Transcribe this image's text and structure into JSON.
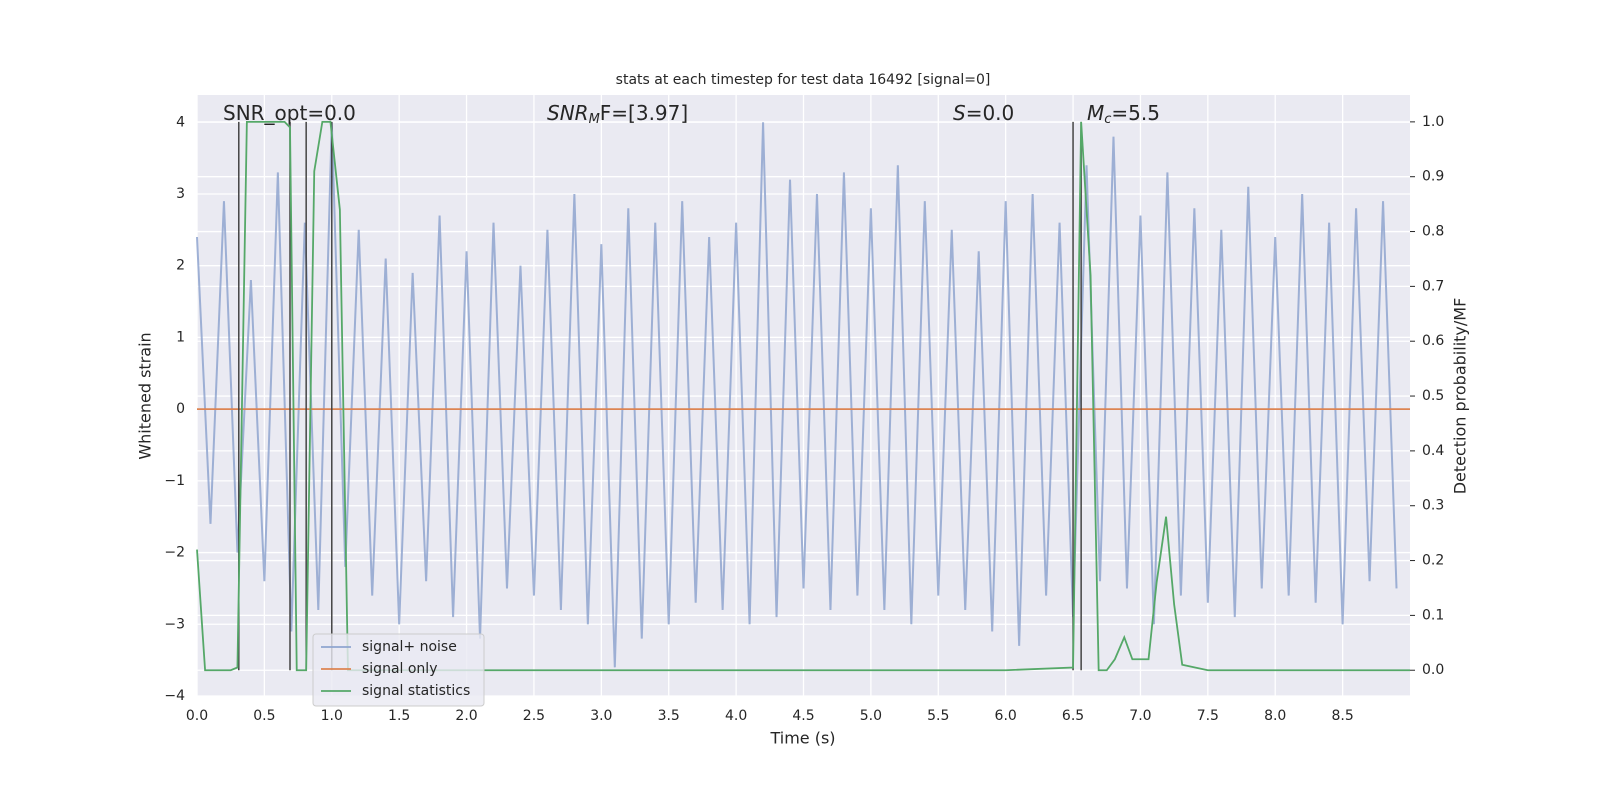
{
  "chart_data": {
    "type": "line",
    "title": "stats at each timestep for test data 16492 [signal=0]",
    "x_label": "Time (s)",
    "y_label": "Whitened strain",
    "y2_label": "Detection probability/MF",
    "xlim": [
      0,
      9.0
    ],
    "ylim": [
      -4,
      4.38
    ],
    "y2lim": [
      -0.047,
      1.049
    ],
    "grid": true,
    "legend": "lower left",
    "xticks": [
      {
        "value": 0,
        "label": "0.0"
      },
      {
        "value": 0.5,
        "label": "0.5"
      },
      {
        "value": 1,
        "label": "1.0"
      },
      {
        "value": 1.5,
        "label": "1.5"
      },
      {
        "value": 2,
        "label": "2.0"
      },
      {
        "value": 2.5,
        "label": "2.5"
      },
      {
        "value": 3,
        "label": "3.0"
      },
      {
        "value": 3.5,
        "label": "3.5"
      },
      {
        "value": 4,
        "label": "4.0"
      },
      {
        "value": 4.5,
        "label": "4.5"
      },
      {
        "value": 5,
        "label": "5.0"
      },
      {
        "value": 5.5,
        "label": "5.5"
      },
      {
        "value": 6,
        "label": "6.0"
      },
      {
        "value": 6.5,
        "label": "6.5"
      },
      {
        "value": 7,
        "label": "7.0"
      },
      {
        "value": 7.5,
        "label": "7.5"
      },
      {
        "value": 8,
        "label": "8.0"
      },
      {
        "value": 8.5,
        "label": "8.5"
      }
    ],
    "yticks": [
      {
        "value": -4,
        "label": "−4"
      },
      {
        "value": -3,
        "label": "−3"
      },
      {
        "value": -2,
        "label": "−2"
      },
      {
        "value": -1,
        "label": "−1"
      },
      0,
      1,
      2,
      3,
      4
    ],
    "y2ticks": [
      {
        "value": 0,
        "label": "0.0"
      },
      0.1,
      0.2,
      0.3,
      0.4,
      0.5,
      0.6,
      0.7,
      0.8,
      0.9,
      {
        "value": 1,
        "label": "1.0"
      }
    ],
    "series": [
      {
        "name": "signal+ noise",
        "color": "#8fa5cf",
        "x": [
          0.0,
          0.1,
          0.2,
          0.3,
          0.4,
          0.5,
          0.6,
          0.7,
          0.8,
          0.9,
          1.0,
          1.1,
          1.2,
          1.3,
          1.4,
          1.5,
          1.6,
          1.7,
          1.8,
          1.9,
          2.0,
          2.1,
          2.2,
          2.3,
          2.4,
          2.5,
          2.6,
          2.7,
          2.8,
          2.9,
          3.0,
          3.1,
          3.2,
          3.3,
          3.4,
          3.5,
          3.6,
          3.7,
          3.8,
          3.9,
          4.0,
          4.1,
          4.2,
          4.3,
          4.4,
          4.5,
          4.6,
          4.7,
          4.8,
          4.9,
          5.0,
          5.1,
          5.2,
          5.3,
          5.4,
          5.5,
          5.6,
          5.7,
          5.8,
          5.9,
          6.0,
          6.1,
          6.2,
          6.3,
          6.4,
          6.5,
          6.6,
          6.7,
          6.8,
          6.9,
          7.0,
          7.1,
          7.2,
          7.3,
          7.4,
          7.5,
          7.6,
          7.7,
          7.8,
          7.9,
          8.0,
          8.1,
          8.2,
          8.3,
          8.4,
          8.5,
          8.6,
          8.7,
          8.8,
          8.9
        ],
        "values": [
          2.4,
          -1.6,
          2.9,
          -2.0,
          1.8,
          -2.4,
          3.3,
          -3.1,
          2.6,
          -2.8,
          4.0,
          -2.2,
          2.5,
          -2.6,
          2.1,
          -3.0,
          1.9,
          -2.4,
          2.7,
          -2.9,
          2.2,
          -3.2,
          2.6,
          -2.5,
          2.0,
          -2.6,
          2.5,
          -2.8,
          3.0,
          -3.0,
          2.3,
          -3.6,
          2.8,
          -3.2,
          2.6,
          -3.0,
          2.9,
          -2.7,
          2.4,
          -2.8,
          2.6,
          -3.0,
          4.0,
          -2.9,
          3.2,
          -2.5,
          3.0,
          -2.8,
          3.3,
          -2.6,
          2.8,
          -2.8,
          3.4,
          -3.0,
          2.9,
          -2.6,
          2.5,
          -2.8,
          2.2,
          -3.1,
          2.9,
          -3.3,
          3.0,
          -2.6,
          2.6,
          -2.9,
          3.4,
          -2.4,
          3.8,
          -2.5,
          2.7,
          -3.0,
          3.3,
          -2.6,
          2.8,
          -2.7,
          2.5,
          -2.9,
          3.1,
          -2.5,
          2.4,
          -2.6,
          3.0,
          -2.7,
          2.6,
          -3.0,
          2.8,
          -2.4,
          2.9,
          -2.5
        ]
      },
      {
        "name": "signal only",
        "color": "#dd8452",
        "x": [
          0,
          9.0
        ],
        "values": [
          0,
          0
        ]
      },
      {
        "name": "signal statistics",
        "color": "#55a868",
        "axis": "y2",
        "x": [
          0,
          0.06,
          0.25,
          0.3,
          0.37,
          0.5,
          0.65,
          0.69,
          0.74,
          0.81,
          0.87,
          0.93,
          0.99,
          1.06,
          1.12,
          2.0,
          4.0,
          6.0,
          6.5,
          6.56,
          6.63,
          6.69,
          6.75,
          6.81,
          6.88,
          6.94,
          7.0,
          7.06,
          7.12,
          7.19,
          7.25,
          7.31,
          7.5,
          8.5,
          9.0
        ],
        "values": [
          0.22,
          0.0,
          0.0,
          0.005,
          1.0,
          1.0,
          1.0,
          0.99,
          0.0,
          0.0,
          0.91,
          1.0,
          1.0,
          0.84,
          0.0,
          0.0,
          0.0,
          0.0,
          0.005,
          1.0,
          0.72,
          0.0,
          0.0,
          0.02,
          0.06,
          0.02,
          0.02,
          0.02,
          0.16,
          0.28,
          0.12,
          0.01,
          0.0,
          0.0,
          0.0
        ]
      }
    ],
    "vlines": [
      0.31,
      0.69,
      0.81,
      1.0,
      6.5,
      6.56
    ],
    "annotations": [
      {
        "base": "SNR_opt=0.0"
      },
      {
        "base": "SNR",
        "sub": "M",
        "rest": "F=[3.97]"
      },
      {
        "base": "S",
        "rest": "=0.0"
      },
      {
        "base": "M",
        "sub": "c",
        "rest": "=5.5"
      }
    ]
  }
}
